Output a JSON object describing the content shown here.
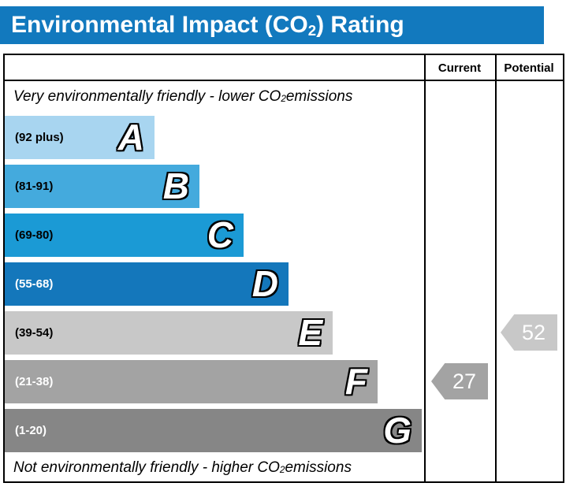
{
  "title": {
    "pre": "Environmental Impact (CO",
    "sub": "2",
    "post": ") Rating"
  },
  "table": {
    "current_header": "Current",
    "potential_header": "Potential"
  },
  "notes": {
    "top_pre": "Very environmentally friendly - lower CO",
    "top_sub": "2",
    "top_post": " emissions",
    "bottom_pre": "Not environmentally friendly - higher CO",
    "bottom_sub": "2",
    "bottom_post": " emissions"
  },
  "colors": {
    "header_bg": "#1279be",
    "border": "#000000",
    "current_arrow": "#a3a3a3",
    "potential_arrow": "#c8c8c8"
  },
  "chart_data": {
    "type": "bar",
    "title": "Environmental Impact (CO2) Rating",
    "bands": [
      {
        "letter": "A",
        "label": "(92 plus)",
        "color": "#a8d5f0"
      },
      {
        "letter": "B",
        "label": "(81-91)",
        "color": "#44aadd"
      },
      {
        "letter": "C",
        "label": "(69-80)",
        "color": "#1b9ad5"
      },
      {
        "letter": "D",
        "label": "(55-68)",
        "color": "#1477bb"
      },
      {
        "letter": "E",
        "label": "(39-54)",
        "color": "#c8c8c8"
      },
      {
        "letter": "F",
        "label": "(21-38)",
        "color": "#a3a3a3"
      },
      {
        "letter": "G",
        "label": "(1-20)",
        "color": "#868686"
      }
    ],
    "current": {
      "value": 27,
      "band": "F",
      "color": "#a3a3a3"
    },
    "potential": {
      "value": 52,
      "band": "E",
      "color": "#c8c8c8"
    }
  }
}
